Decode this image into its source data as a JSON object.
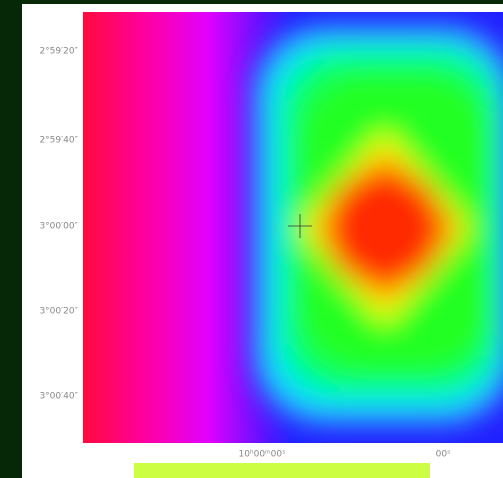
{
  "axes": {
    "y_ticks": [
      "2°59′20″",
      "2°59′40″",
      "3°00′00″",
      "3°00′20″",
      "3°00′40″"
    ],
    "x_ticks": [
      "10ʰ00ᵐ00ˢ",
      "00ˢ"
    ]
  }
}
